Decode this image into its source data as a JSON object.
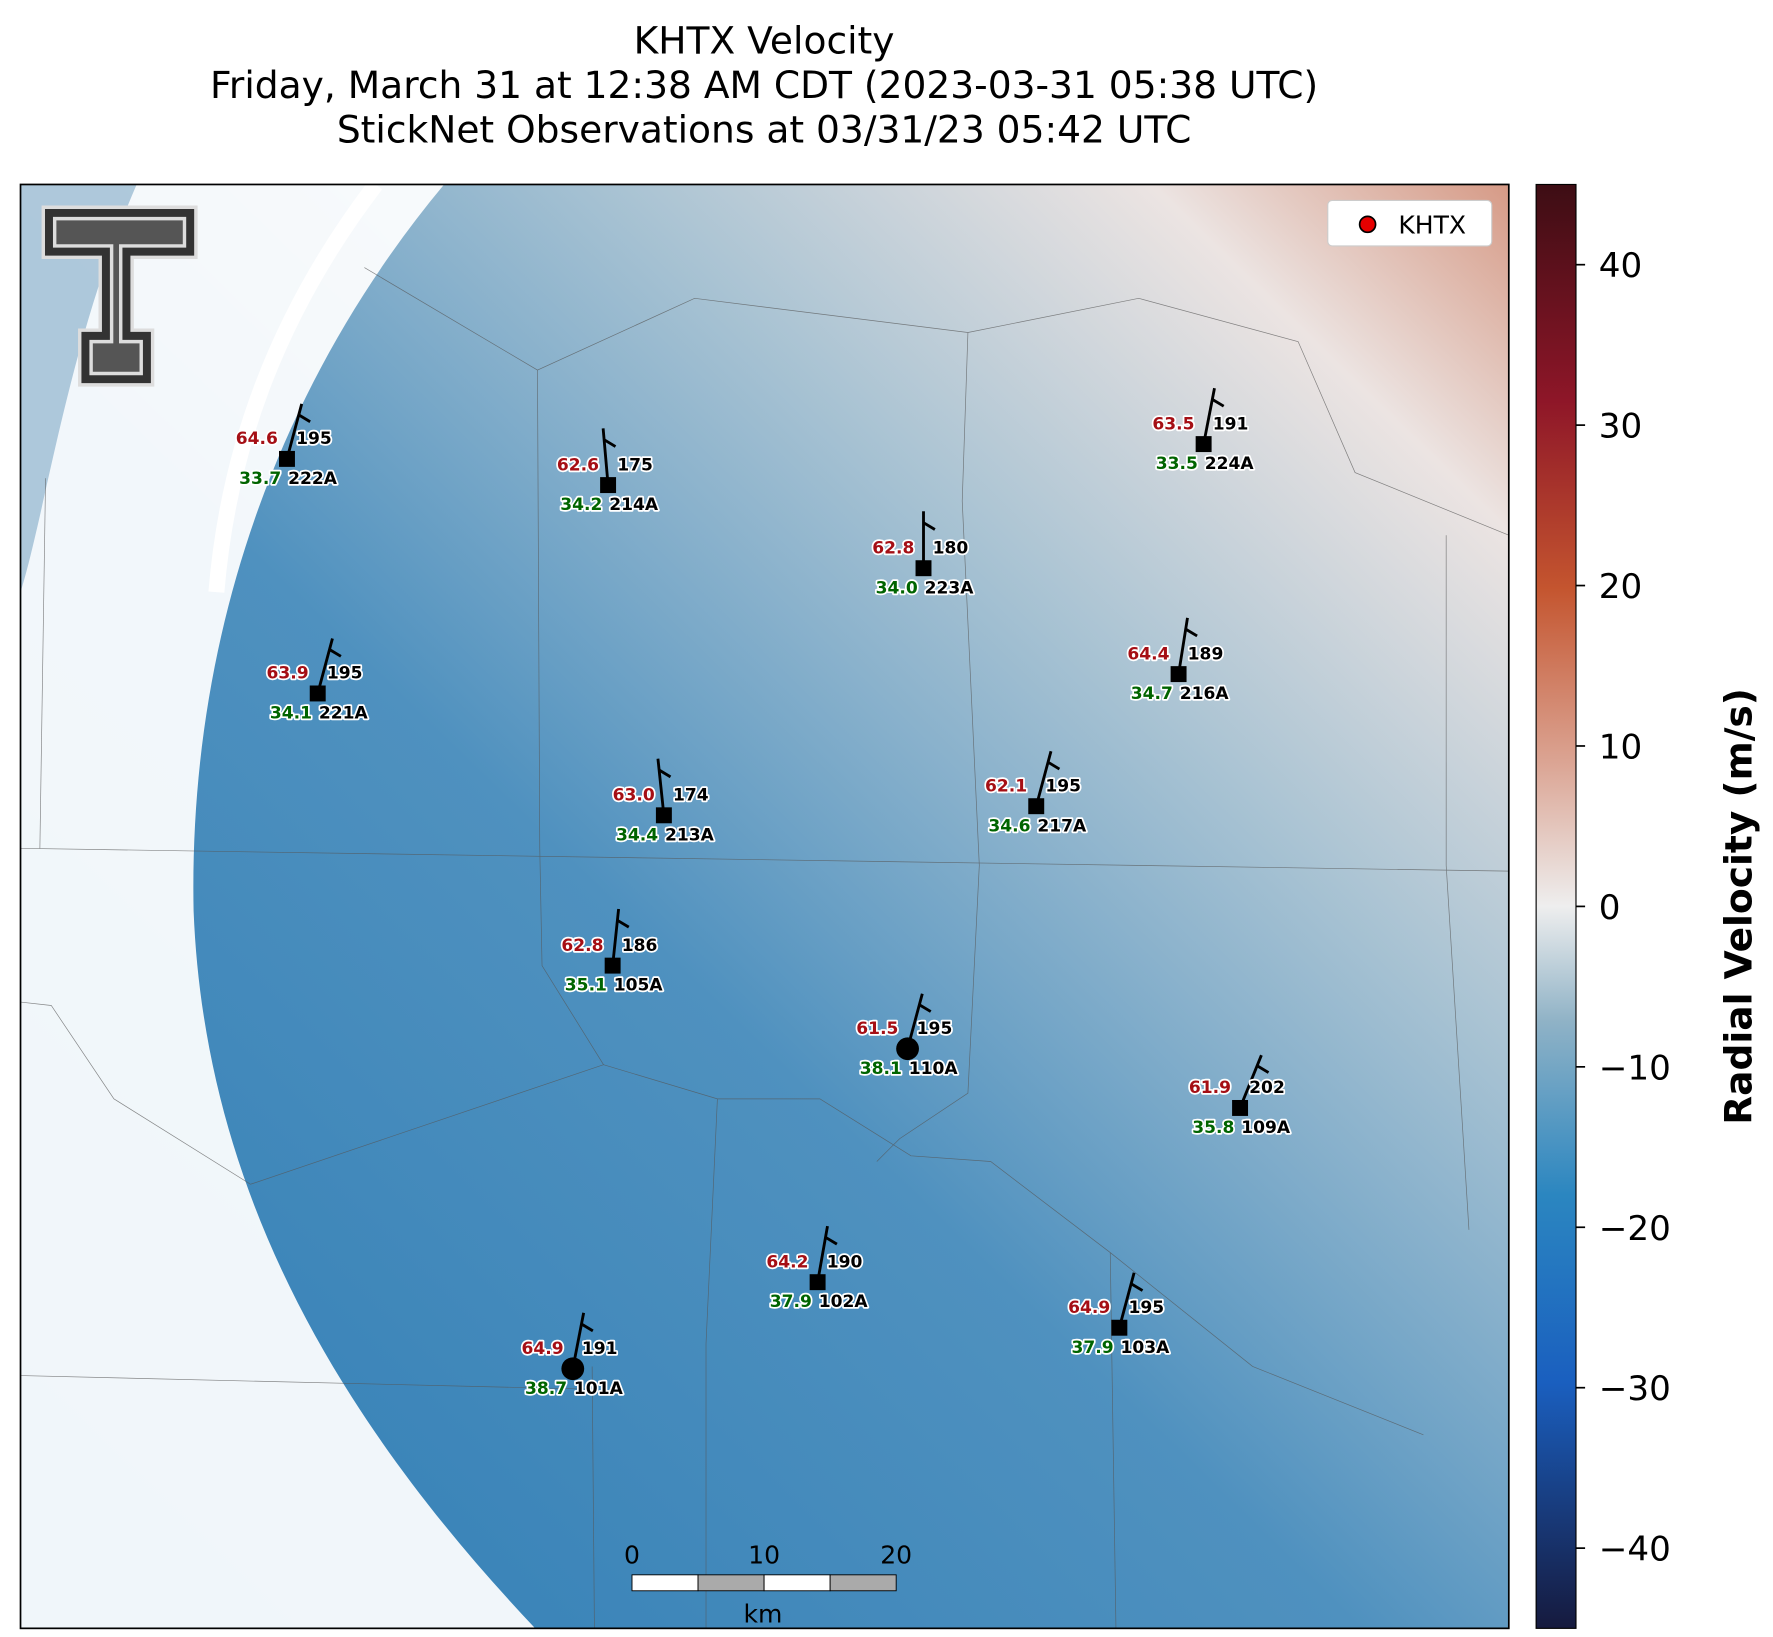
{
  "header": {
    "title_lines": [
      "KHTX Velocity",
      "Friday, March 31 at 12:38 AM CDT (2023-03-31 05:38 UTC)",
      "StickNet Observations at 03/31/23 05:42 UTC"
    ]
  },
  "legend": {
    "label": "KHTX"
  },
  "colorbar": {
    "label": "Radial Velocity (m/s)",
    "clim": [
      -45,
      45
    ],
    "ticks": [
      {
        "value": -40,
        "label": "−40"
      },
      {
        "value": -30,
        "label": "−30"
      },
      {
        "value": -20,
        "label": "−20"
      },
      {
        "value": -10,
        "label": "−10"
      },
      0,
      10,
      20,
      30,
      40
    ]
  },
  "scale_bar": {
    "ticks": [
      0,
      10,
      20
    ],
    "unit": "km"
  },
  "stations": [
    {
      "id": "222A",
      "temperature": "64.6",
      "dewpoint": "33.7",
      "direction": 195
    },
    {
      "id": "214A",
      "temperature": "62.6",
      "dewpoint": "34.2",
      "direction": 175
    },
    {
      "id": "223A",
      "temperature": "62.8",
      "dewpoint": "34.0",
      "direction": 180
    },
    {
      "id": "224A",
      "temperature": "63.5",
      "dewpoint": "33.5",
      "direction": 191
    },
    {
      "id": "221A",
      "temperature": "63.9",
      "dewpoint": "34.1",
      "direction": 195
    },
    {
      "id": "216A",
      "temperature": "64.4",
      "dewpoint": "34.7",
      "direction": 189
    },
    {
      "id": "213A",
      "temperature": "63.0",
      "dewpoint": "34.4",
      "direction": 174
    },
    {
      "id": "217A",
      "temperature": "62.1",
      "dewpoint": "34.6",
      "direction": 195
    },
    {
      "id": "105A",
      "temperature": "62.8",
      "dewpoint": "35.1",
      "direction": 186
    },
    {
      "id": "110A",
      "temperature": "61.5",
      "dewpoint": "38.1",
      "direction": 195
    },
    {
      "id": "109A",
      "temperature": "61.9",
      "dewpoint": "35.8",
      "direction": 202
    },
    {
      "id": "102A",
      "temperature": "64.2",
      "dewpoint": "37.9",
      "direction": 190
    },
    {
      "id": "103A",
      "temperature": "64.9",
      "dewpoint": "37.9",
      "direction": 195
    },
    {
      "id": "101A",
      "temperature": "64.9",
      "dewpoint": "38.7",
      "direction": 191
    }
  ]
}
